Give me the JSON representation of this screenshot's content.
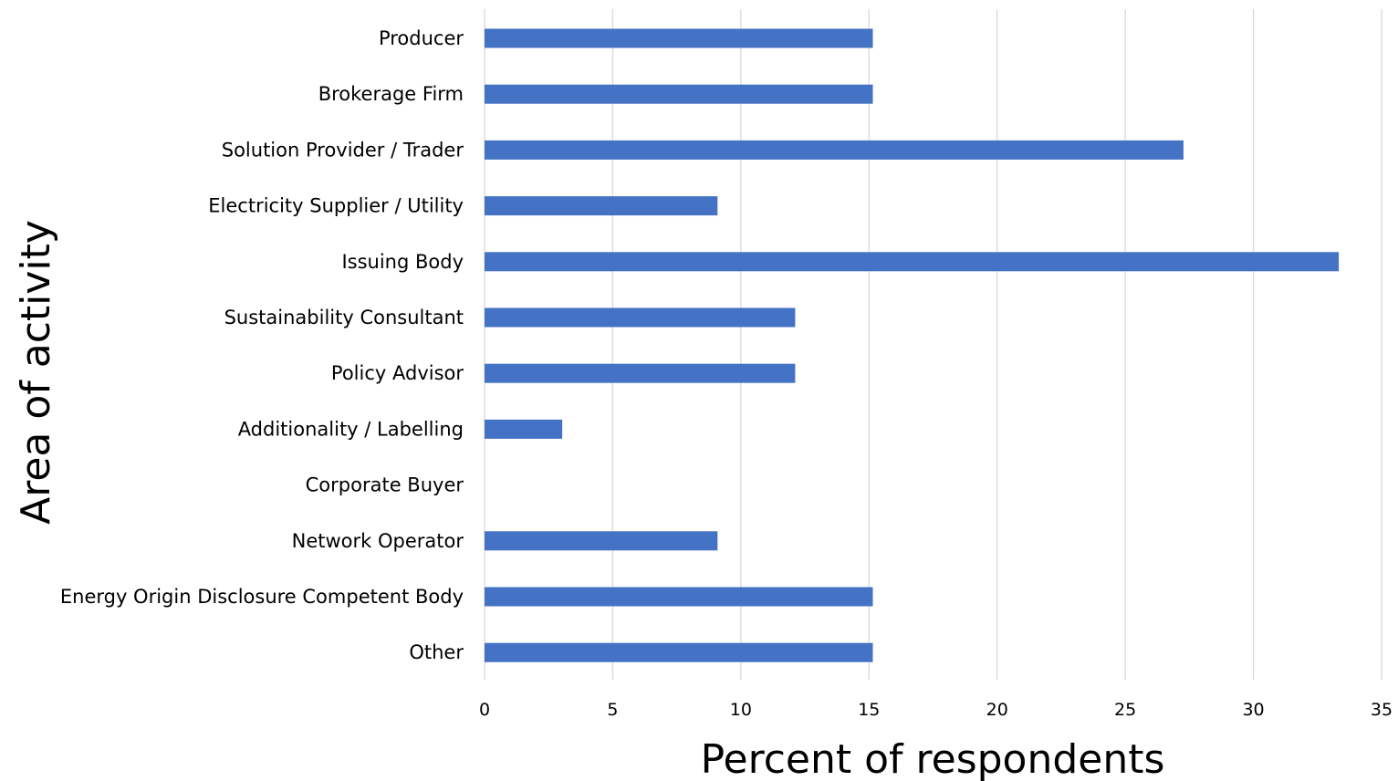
{
  "chart_data": {
    "type": "bar",
    "orientation": "horizontal",
    "title": "",
    "xlabel": "Percent of respondents",
    "ylabel": "Area of activity",
    "xlim": [
      0,
      35
    ],
    "xticks": [
      0,
      5,
      10,
      15,
      20,
      25,
      30,
      35
    ],
    "grid": "vertical",
    "legend": "none",
    "bar_color": "#4472c4",
    "categories": [
      "Producer",
      "Brokerage Firm",
      "Solution Provider / Trader",
      "Electricity Supplier / Utility",
      "Issuing Body",
      "Sustainability Consultant",
      "Policy Advisor",
      "Additionality / Labelling",
      "Corporate Buyer",
      "Network Operator",
      "Energy Origin Disclosure Competent Body",
      "Other"
    ],
    "values": [
      15.15,
      15.15,
      27.27,
      9.09,
      33.33,
      12.12,
      12.12,
      3.03,
      0,
      9.09,
      15.15,
      15.15
    ]
  }
}
